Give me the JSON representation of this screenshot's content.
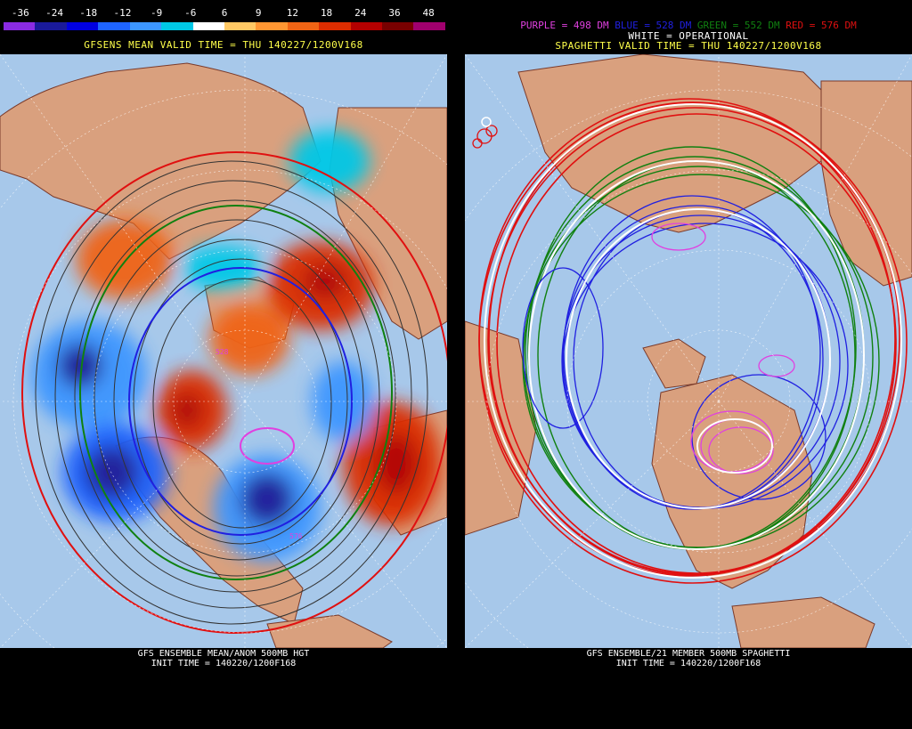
{
  "left": {
    "colorbar": {
      "ticks": [
        "-36",
        "-24",
        "-18",
        "-12",
        "-9",
        "-6",
        "6",
        "9",
        "12",
        "18",
        "24",
        "36",
        "48"
      ],
      "colors": [
        "#8a2be2",
        "#1a1a9a",
        "#0000e0",
        "#1e64ff",
        "#3c96ff",
        "#00c8e6",
        "#ffffff",
        "#ffc864",
        "#ff9632",
        "#f06414",
        "#dc2d00",
        "#b40000",
        "#780000",
        "#a0006e"
      ]
    },
    "title": "GFSENS MEAN VALID TIME = THU 140227/1200V168",
    "footer_line1": "GFS ENSEMBLE MEAN/ANOM 500MB HGT",
    "footer_line2": "INIT TIME = 140220/1200F168",
    "contour_labels": [
      "528",
      "576"
    ]
  },
  "right": {
    "legend": {
      "purple": "PURPLE = 498 DM",
      "blue": "BLUE = 528 DM",
      "green": "GREEN = 552 DM",
      "red": "RED = 576 DM"
    },
    "white_label": "WHITE = OPERATIONAL",
    "title": "SPAGHETTI VALID TIME = THU 140227/1200V168",
    "footer_line1": "GFS ENSEMBLE/21 MEMBER 500MB SPAGHETTI",
    "footer_line2": "INIT TIME = 140220/1200F168"
  },
  "colors": {
    "ocean": "#a7c8ea",
    "land": "#d9a07e",
    "coast": "#7a3a2a",
    "legend_purple": "#e040e0",
    "legend_blue": "#2020e0",
    "legend_green": "#108010",
    "legend_red": "#e01010"
  }
}
